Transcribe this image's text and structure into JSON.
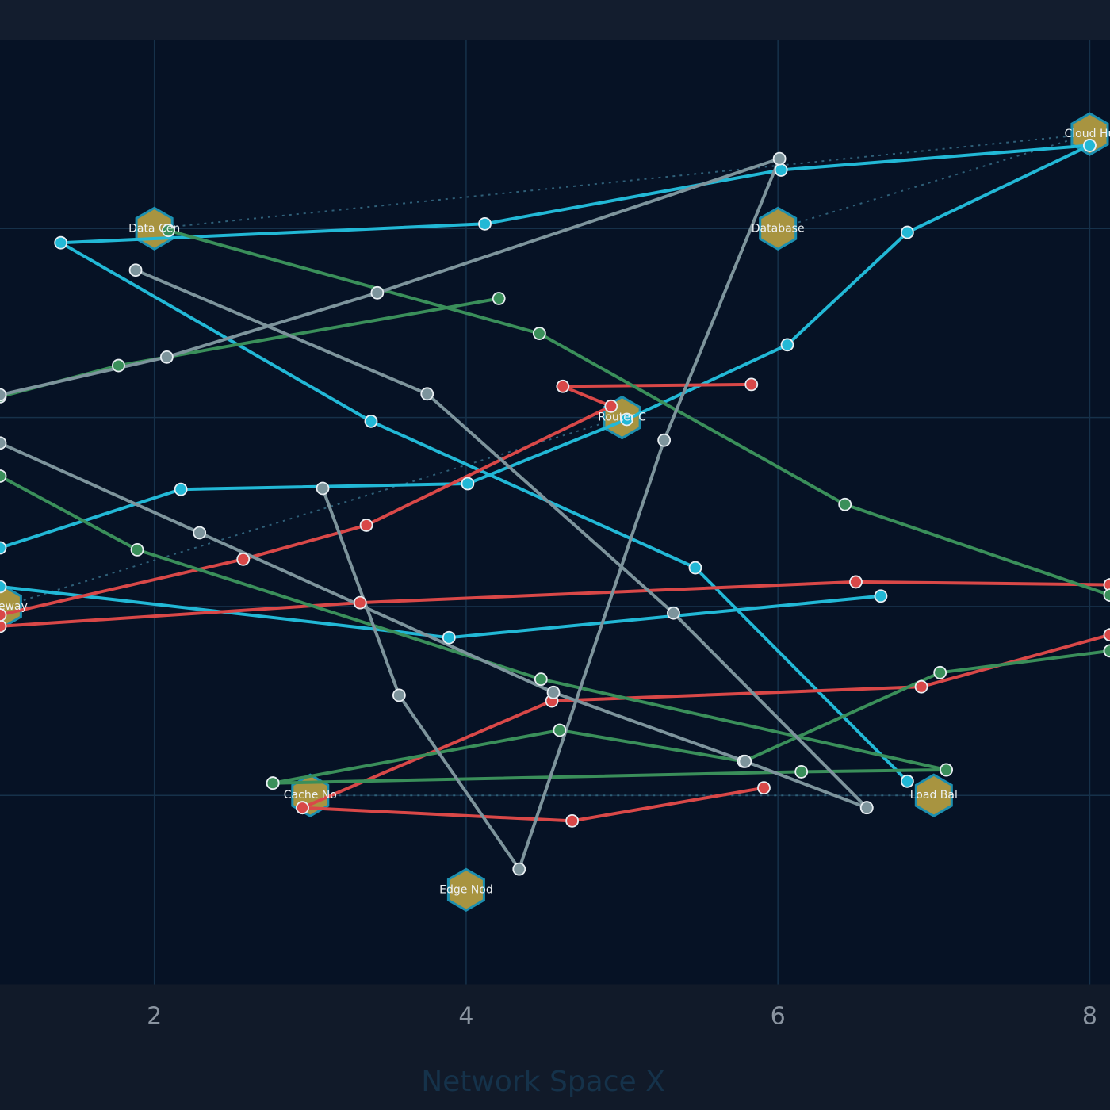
{
  "chart_data": {
    "type": "network",
    "x_label": "Network Space X",
    "xlim": [
      1.01,
      8.13
    ],
    "ylim": [
      0,
      10
    ],
    "xticks": [
      2,
      4,
      6,
      8
    ],
    "yticks": [
      2,
      4,
      6,
      8
    ],
    "grid": true,
    "node_color": "#a89440",
    "node_stroke": "#1c8fb0",
    "edge_color": "#2f5f78",
    "nodes": [
      {
        "label": "Data Cen",
        "x": 2,
        "y": 8
      },
      {
        "label": "Database",
        "x": 6,
        "y": 8
      },
      {
        "label": "Router C",
        "x": 5,
        "y": 6
      },
      {
        "label": "Gateway",
        "x": 1.03,
        "y": 4
      },
      {
        "label": "Cache No",
        "x": 3,
        "y": 2
      },
      {
        "label": "Load Bal",
        "x": 7,
        "y": 2
      },
      {
        "label": "Edge Nod",
        "x": 4,
        "y": 1
      },
      {
        "label": "Cloud Hu",
        "x": 8,
        "y": 9
      }
    ],
    "edges": [
      [
        "Data Cen",
        "Cloud Hu"
      ],
      [
        "Database",
        "Cloud Hu"
      ],
      [
        "Gateway",
        "Router C"
      ],
      [
        "Cache No",
        "Load Bal"
      ]
    ],
    "series": [
      {
        "color": "#22b8d6",
        "x": [
          8.0,
          6.02,
          4.12,
          1.4,
          3.39,
          5.47,
          6.83
        ],
        "y": [
          8.88,
          8.62,
          8.05,
          7.85,
          5.96,
          4.41,
          2.15
        ]
      },
      {
        "color": "#22b8d6",
        "x": [
          1.01,
          2.17,
          4.01,
          5.03,
          6.06,
          6.83,
          8.0
        ],
        "y": [
          4.62,
          5.24,
          5.3,
          5.98,
          6.77,
          7.96,
          8.88
        ]
      },
      {
        "color": "#22b8d6",
        "x": [
          1.01,
          3.89,
          6.66
        ],
        "y": [
          4.21,
          3.67,
          4.11
        ]
      },
      {
        "color": "#d94848",
        "x": [
          1.01,
          3.32,
          6.5,
          8.13
        ],
        "y": [
          3.79,
          4.04,
          4.26,
          4.23
        ]
      },
      {
        "color": "#d94848",
        "x": [
          1.01,
          2.57,
          3.36,
          4.93,
          4.62,
          5.83
        ],
        "y": [
          3.91,
          4.5,
          4.86,
          6.12,
          6.33,
          6.35
        ]
      },
      {
        "color": "#d94848",
        "x": [
          2.95,
          4.55,
          6.92,
          8.13
        ],
        "y": [
          1.87,
          3.0,
          3.15,
          3.7
        ]
      },
      {
        "color": "#d94848",
        "x": [
          2.95,
          4.68,
          5.91
        ],
        "y": [
          1.87,
          1.73,
          2.08
        ]
      },
      {
        "color": "#3a8f5a",
        "x": [
          1.01,
          1.77,
          4.21
        ],
        "y": [
          6.22,
          6.55,
          7.26
        ]
      },
      {
        "color": "#3a8f5a",
        "x": [
          2.09,
          4.47,
          6.43,
          8.13
        ],
        "y": [
          7.98,
          6.89,
          5.08,
          4.12
        ]
      },
      {
        "color": "#3a8f5a",
        "x": [
          1.01,
          1.89,
          4.48,
          7.08
        ],
        "y": [
          5.38,
          4.6,
          3.23,
          2.27
        ]
      },
      {
        "color": "#3a8f5a",
        "x": [
          2.76,
          4.6,
          5.78,
          7.04,
          8.13
        ],
        "y": [
          2.13,
          2.69,
          2.36,
          3.3,
          3.53
        ]
      },
      {
        "color": "#3a8f5a",
        "x": [
          2.76,
          6.15,
          7.08
        ],
        "y": [
          2.13,
          2.25,
          2.27
        ]
      },
      {
        "color": "#7d949c",
        "x": [
          1.01,
          2.08,
          3.43,
          6.01,
          5.27,
          4.34,
          3.57,
          3.08
        ],
        "y": [
          6.24,
          6.64,
          7.32,
          8.74,
          5.76,
          1.22,
          3.06,
          5.25
        ]
      },
      {
        "color": "#7d949c",
        "x": [
          1.88,
          3.75,
          5.33,
          6.57
        ],
        "y": [
          7.56,
          6.25,
          3.93,
          1.87
        ]
      },
      {
        "color": "#7d949c",
        "x": [
          1.01,
          2.29,
          4.56,
          5.79,
          6.57
        ],
        "y": [
          5.73,
          4.78,
          3.09,
          2.36,
          1.87
        ]
      }
    ]
  }
}
